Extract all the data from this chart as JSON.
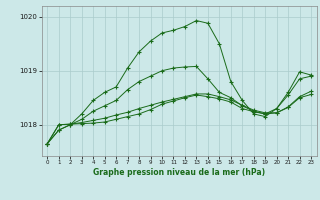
{
  "hours": [
    0,
    1,
    2,
    3,
    4,
    5,
    6,
    7,
    8,
    9,
    10,
    11,
    12,
    13,
    14,
    15,
    16,
    17,
    18,
    19,
    20,
    21,
    22,
    23
  ],
  "line1": [
    1017.65,
    1017.9,
    1018.0,
    1018.2,
    1018.45,
    1018.6,
    1018.7,
    1019.05,
    1019.35,
    1019.55,
    1019.7,
    1019.75,
    1019.82,
    1019.93,
    1019.88,
    1019.5,
    1018.8,
    1018.45,
    1018.2,
    1018.15,
    1018.3,
    1018.6,
    1018.98,
    1018.92
  ],
  "line2": [
    1017.65,
    1017.9,
    1018.0,
    1018.1,
    1018.25,
    1018.35,
    1018.45,
    1018.65,
    1018.8,
    1018.9,
    1019.0,
    1019.05,
    1019.07,
    1019.08,
    1018.85,
    1018.6,
    1018.5,
    1018.35,
    1018.25,
    1018.2,
    1018.3,
    1018.55,
    1018.85,
    1018.9
  ],
  "line3": [
    1017.65,
    1018.0,
    1018.01,
    1018.02,
    1018.03,
    1018.05,
    1018.1,
    1018.15,
    1018.2,
    1018.28,
    1018.38,
    1018.44,
    1018.5,
    1018.55,
    1018.52,
    1018.48,
    1018.42,
    1018.3,
    1018.24,
    1018.2,
    1018.22,
    1018.32,
    1018.5,
    1018.56
  ],
  "line4": [
    1017.65,
    1018.0,
    1018.01,
    1018.04,
    1018.08,
    1018.12,
    1018.18,
    1018.23,
    1018.3,
    1018.36,
    1018.42,
    1018.47,
    1018.52,
    1018.57,
    1018.57,
    1018.52,
    1018.46,
    1018.36,
    1018.27,
    1018.22,
    1018.22,
    1018.33,
    1018.52,
    1018.62
  ],
  "line_color": "#1a6b1a",
  "bg_color": "#cce8e8",
  "grid_color": "#aacccc",
  "ylabel_ticks": [
    1018,
    1019,
    1020
  ],
  "xlabel": "Graphe pression niveau de la mer (hPa)",
  "ylim": [
    1017.42,
    1020.2
  ],
  "xlim": [
    -0.5,
    23.5
  ]
}
